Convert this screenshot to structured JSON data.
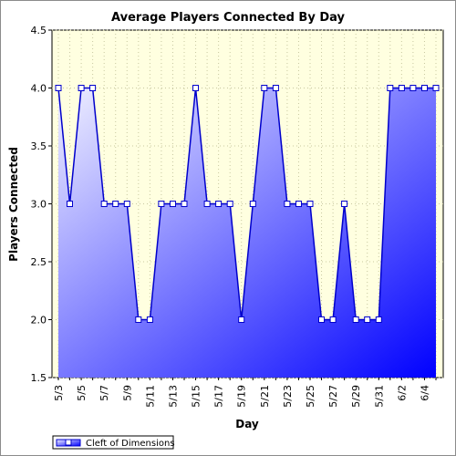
{
  "chart_data": {
    "type": "area",
    "title": "Average Players Connected By Day",
    "xlabel": "Day",
    "ylabel": "Players Connected",
    "ylim": [
      1.5,
      4.5
    ],
    "yticks": [
      "1.5",
      "2.0",
      "2.5",
      "3.0",
      "3.5",
      "4.0",
      "4.5"
    ],
    "x": [
      "5/3",
      "5/4",
      "5/5",
      "5/6",
      "5/7",
      "5/8",
      "5/9",
      "5/10",
      "5/11",
      "5/12",
      "5/13",
      "5/14",
      "5/15",
      "5/16",
      "5/17",
      "5/18",
      "5/19",
      "5/20",
      "5/21",
      "5/22",
      "5/23",
      "5/24",
      "5/25",
      "5/26",
      "5/27",
      "5/28",
      "5/29",
      "5/30",
      "5/31",
      "6/1",
      "6/2",
      "6/3",
      "6/4",
      "6/5"
    ],
    "xtick_labels": [
      "5/3",
      "5/5",
      "5/7",
      "5/9",
      "5/11",
      "5/13",
      "5/15",
      "5/17",
      "5/19",
      "5/21",
      "5/23",
      "5/25",
      "5/27",
      "5/29",
      "5/31",
      "6/2",
      "6/4"
    ],
    "series": [
      {
        "name": "Cleft of Dimensions",
        "values": [
          4,
          3,
          4,
          4,
          3,
          3,
          3,
          2,
          2,
          3,
          3,
          3,
          4,
          3,
          3,
          3,
          2,
          3,
          4,
          4,
          3,
          3,
          3,
          2,
          2,
          3,
          2,
          2,
          2,
          4,
          4,
          4,
          4,
          4
        ]
      }
    ],
    "grid": true,
    "legend_position": "bottom-left",
    "colors": {
      "plot_background": "#ffffe0",
      "line": "#0000cc",
      "fill_top": "#ececff",
      "fill_bottom": "#0000ff",
      "marker_fill": "#ffffff"
    }
  }
}
